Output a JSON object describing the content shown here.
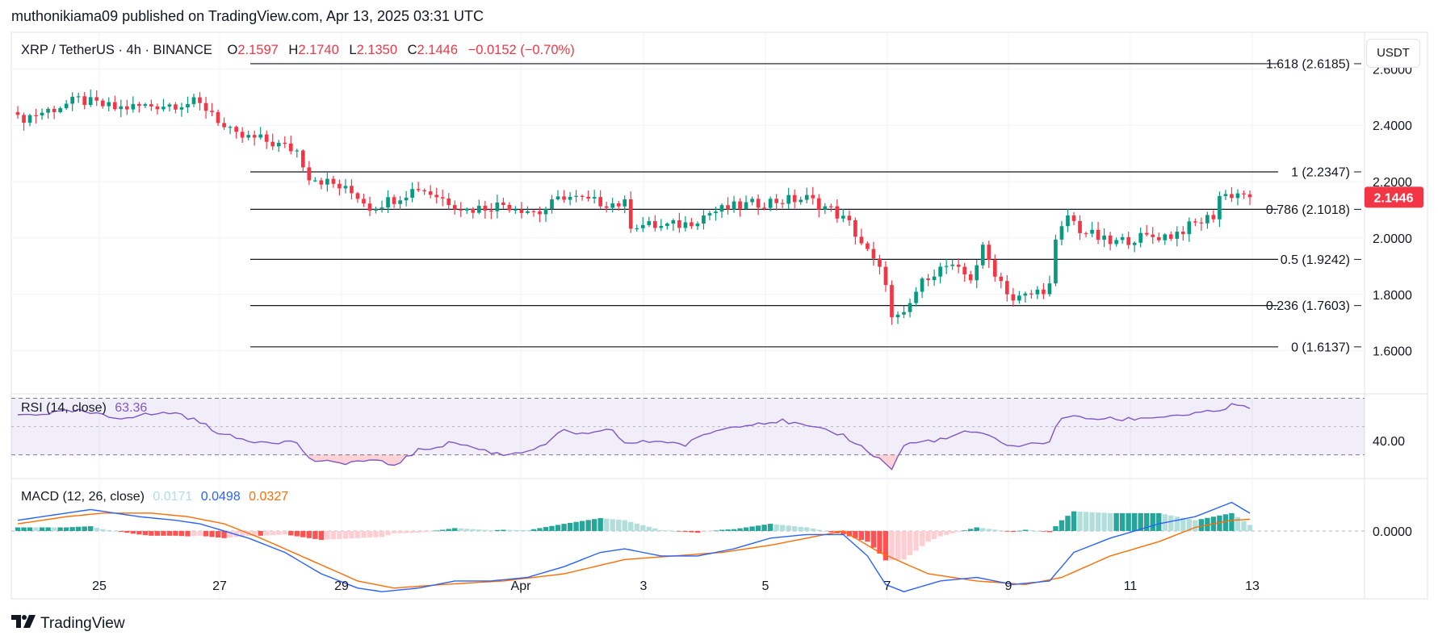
{
  "published_by": "muthonikiama09 published on TradingView.com, Apr 13, 2025 03:31 UTC",
  "header": {
    "symbol": "XRP / TetherUS · 4h · BINANCE",
    "o_label": "O",
    "o_value": "2.1597",
    "h_label": "H",
    "h_value": "2.1740",
    "l_label": "L",
    "l_value": "2.1350",
    "c_label": "C",
    "c_value": "2.1446",
    "change": "−0.0152 (−0.70%)"
  },
  "currency_button": "USDT",
  "logo_text": "TradingView",
  "colors": {
    "up": "#089981",
    "down": "#f23645",
    "rsi": "#7e57c2",
    "macd": "#2962ff",
    "signal": "#ff6d00",
    "hist_up_strong": "#26a69a",
    "hist_up_weak": "#b2dfdb",
    "hist_down_strong": "#ff5252",
    "hist_down_weak": "#ffcdd2"
  },
  "chart_data": [
    {
      "type": "candlestick",
      "x_ticks": [
        "25",
        "27",
        "29",
        "Apr",
        "3",
        "5",
        "7",
        "9",
        "11",
        "13"
      ],
      "y_ticks": [
        "2.6000",
        "2.4000",
        "2.2000",
        "2.0000",
        "1.8000",
        "1.6000"
      ],
      "ylim": [
        1.45,
        2.73
      ],
      "last_price": "2.1446",
      "last_price_value": 2.1446,
      "fib_levels": [
        {
          "label": "1.618 (2.6185)",
          "value": 2.6185
        },
        {
          "label": "1 (2.2347)",
          "value": 2.2347
        },
        {
          "label": "0.786 (2.1018)",
          "value": 2.1018
        },
        {
          "label": "0.5 (1.9242)",
          "value": 1.9242
        },
        {
          "label": "0.236 (1.7603)",
          "value": 1.7603
        },
        {
          "label": "0 (1.6137)",
          "value": 1.6137
        }
      ],
      "anchors": [
        [
          0,
          2.42
        ],
        [
          6,
          2.46
        ],
        [
          10,
          2.49
        ],
        [
          16,
          2.46
        ],
        [
          22,
          2.47
        ],
        [
          29,
          2.48
        ],
        [
          32,
          2.45
        ],
        [
          34,
          2.39
        ],
        [
          36,
          2.36
        ],
        [
          40,
          2.35
        ],
        [
          46,
          2.31
        ],
        [
          48,
          2.22
        ],
        [
          52,
          2.19
        ],
        [
          56,
          2.15
        ],
        [
          58,
          2.11
        ],
        [
          62,
          2.14
        ],
        [
          66,
          2.18
        ],
        [
          70,
          2.14
        ],
        [
          74,
          2.1
        ],
        [
          80,
          2.12
        ],
        [
          86,
          2.09
        ],
        [
          90,
          2.15
        ],
        [
          94,
          2.13
        ],
        [
          100,
          2.12
        ],
        [
          101,
          2.05
        ],
        [
          106,
          2.04
        ],
        [
          110,
          2.05
        ],
        [
          114,
          2.09
        ],
        [
          118,
          2.11
        ],
        [
          124,
          2.13
        ],
        [
          130,
          2.14
        ],
        [
          134,
          2.1
        ],
        [
          137,
          2.05
        ],
        [
          140,
          1.95
        ],
        [
          143,
          1.85
        ],
        [
          144,
          1.71
        ],
        [
          146,
          1.72
        ],
        [
          148,
          1.81
        ],
        [
          150,
          1.87
        ],
        [
          153,
          1.9
        ],
        [
          157,
          1.86
        ],
        [
          159,
          1.96
        ],
        [
          161,
          1.88
        ],
        [
          164,
          1.78
        ],
        [
          167,
          1.8
        ],
        [
          170,
          1.83
        ],
        [
          171,
          1.98
        ],
        [
          173,
          2.08
        ],
        [
          175,
          2.03
        ],
        [
          180,
          1.98
        ],
        [
          184,
          2.0
        ],
        [
          190,
          2.01
        ],
        [
          194,
          2.05
        ],
        [
          197,
          2.08
        ],
        [
          198,
          2.15
        ],
        [
          202,
          2.16
        ],
        [
          203,
          2.1446
        ]
      ],
      "rsi": {
        "label": "RSI (14, close)",
        "value": "63.36",
        "tick": "40.00",
        "band_upper": 70,
        "band_lower": 30,
        "ylim": [
          15,
          72
        ],
        "anchors": [
          [
            0,
            58
          ],
          [
            10,
            61
          ],
          [
            16,
            56
          ],
          [
            20,
            58
          ],
          [
            26,
            60
          ],
          [
            30,
            53
          ],
          [
            34,
            44
          ],
          [
            38,
            40
          ],
          [
            46,
            39
          ],
          [
            48,
            27
          ],
          [
            52,
            24
          ],
          [
            58,
            26
          ],
          [
            62,
            23
          ],
          [
            66,
            33
          ],
          [
            72,
            39
          ],
          [
            76,
            34
          ],
          [
            80,
            30
          ],
          [
            86,
            35
          ],
          [
            90,
            47
          ],
          [
            94,
            44
          ],
          [
            98,
            48
          ],
          [
            100,
            38
          ],
          [
            106,
            40
          ],
          [
            110,
            37
          ],
          [
            114,
            46
          ],
          [
            120,
            52
          ],
          [
            126,
            54
          ],
          [
            130,
            50
          ],
          [
            136,
            44
          ],
          [
            140,
            33
          ],
          [
            143,
            24
          ],
          [
            144,
            20
          ],
          [
            146,
            37
          ],
          [
            150,
            40
          ],
          [
            154,
            42
          ],
          [
            156,
            47
          ],
          [
            160,
            43
          ],
          [
            164,
            36
          ],
          [
            168,
            38
          ],
          [
            170,
            40
          ],
          [
            172,
            57
          ],
          [
            176,
            56
          ],
          [
            182,
            55
          ],
          [
            188,
            57
          ],
          [
            194,
            59
          ],
          [
            198,
            61
          ],
          [
            200,
            65
          ],
          [
            203,
            63.36
          ]
        ]
      },
      "macd": {
        "label": "MACD (12, 26, close)",
        "hist_value": "0.0171",
        "macd_value": "0.0498",
        "signal_value": "0.0327",
        "zero_tick": "0.0000",
        "ylim": [
          -0.19,
          0.14
        ],
        "macd_anchors": [
          [
            0,
            0.03
          ],
          [
            8,
            0.05
          ],
          [
            12,
            0.06
          ],
          [
            20,
            0.04
          ],
          [
            26,
            0.03
          ],
          [
            30,
            0.02
          ],
          [
            34,
            0.0
          ],
          [
            38,
            -0.02
          ],
          [
            44,
            -0.06
          ],
          [
            50,
            -0.12
          ],
          [
            56,
            -0.16
          ],
          [
            60,
            -0.17
          ],
          [
            66,
            -0.16
          ],
          [
            72,
            -0.14
          ],
          [
            78,
            -0.14
          ],
          [
            84,
            -0.13
          ],
          [
            90,
            -0.1
          ],
          [
            96,
            -0.06
          ],
          [
            100,
            -0.05
          ],
          [
            106,
            -0.07
          ],
          [
            112,
            -0.07
          ],
          [
            118,
            -0.05
          ],
          [
            124,
            -0.02
          ],
          [
            130,
            -0.01
          ],
          [
            136,
            -0.01
          ],
          [
            140,
            -0.07
          ],
          [
            143,
            -0.15
          ],
          [
            146,
            -0.17
          ],
          [
            152,
            -0.14
          ],
          [
            158,
            -0.13
          ],
          [
            164,
            -0.15
          ],
          [
            170,
            -0.14
          ],
          [
            174,
            -0.06
          ],
          [
            180,
            -0.02
          ],
          [
            188,
            0.02
          ],
          [
            194,
            0.04
          ],
          [
            200,
            0.08
          ],
          [
            203,
            0.0498
          ]
        ],
        "signal_anchors": [
          [
            0,
            0.02
          ],
          [
            8,
            0.04
          ],
          [
            14,
            0.05
          ],
          [
            22,
            0.05
          ],
          [
            28,
            0.04
          ],
          [
            34,
            0.02
          ],
          [
            40,
            -0.02
          ],
          [
            48,
            -0.08
          ],
          [
            56,
            -0.14
          ],
          [
            62,
            -0.16
          ],
          [
            70,
            -0.15
          ],
          [
            80,
            -0.14
          ],
          [
            90,
            -0.12
          ],
          [
            100,
            -0.08
          ],
          [
            108,
            -0.07
          ],
          [
            116,
            -0.06
          ],
          [
            124,
            -0.04
          ],
          [
            130,
            -0.02
          ],
          [
            136,
            0.0
          ],
          [
            142,
            -0.06
          ],
          [
            150,
            -0.12
          ],
          [
            158,
            -0.14
          ],
          [
            166,
            -0.15
          ],
          [
            172,
            -0.13
          ],
          [
            180,
            -0.07
          ],
          [
            188,
            -0.03
          ],
          [
            194,
            0.01
          ],
          [
            200,
            0.03
          ],
          [
            203,
            0.0327
          ]
        ]
      }
    }
  ]
}
